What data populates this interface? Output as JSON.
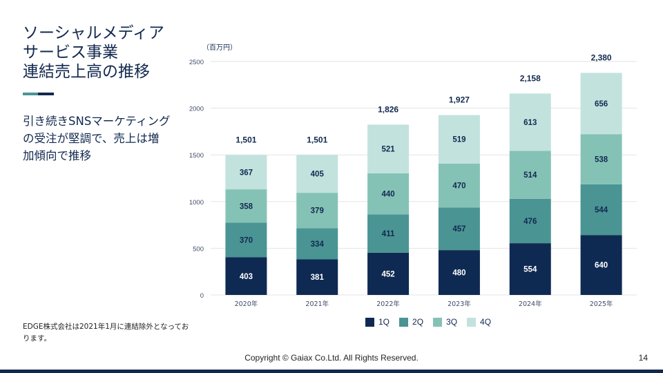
{
  "title": [
    "ソーシャルメディア",
    "サービス事業",
    "連結売上高の推移"
  ],
  "subtitle": [
    "引き続きSNSマーケティング",
    "の受注が堅調で、売上は増",
    "加傾向で推移"
  ],
  "note": "EDGE株式会社は2021年1月に連結除外となっております。",
  "footer": "Copyright © Gaiax Co.Ltd. All Rights Reserved.",
  "page_number": "14",
  "chart_data": {
    "type": "bar",
    "stacked": true,
    "unit_label": "（百万円）",
    "categories": [
      "2020年",
      "2021年",
      "2022年",
      "2023年",
      "2024年",
      "2025年"
    ],
    "series": [
      {
        "name": "1Q",
        "color": "#0f2a52",
        "values": [
          403,
          381,
          452,
          480,
          554,
          640
        ]
      },
      {
        "name": "2Q",
        "color": "#4a9494",
        "values": [
          370,
          334,
          411,
          457,
          476,
          544
        ]
      },
      {
        "name": "3Q",
        "color": "#85c2b6",
        "values": [
          358,
          379,
          440,
          470,
          514,
          538
        ]
      },
      {
        "name": "4Q",
        "color": "#c2e2de",
        "values": [
          367,
          405,
          521,
          519,
          613,
          656
        ]
      }
    ],
    "totals": [
      "1,501",
      "1,501",
      "1,826",
      "1,927",
      "2,158",
      "2,380"
    ],
    "ylim": [
      0,
      2500
    ],
    "yticks": [
      "0",
      "500",
      "1000",
      "1500",
      "2000",
      "2500"
    ],
    "grid": true,
    "legend": "bottom"
  }
}
